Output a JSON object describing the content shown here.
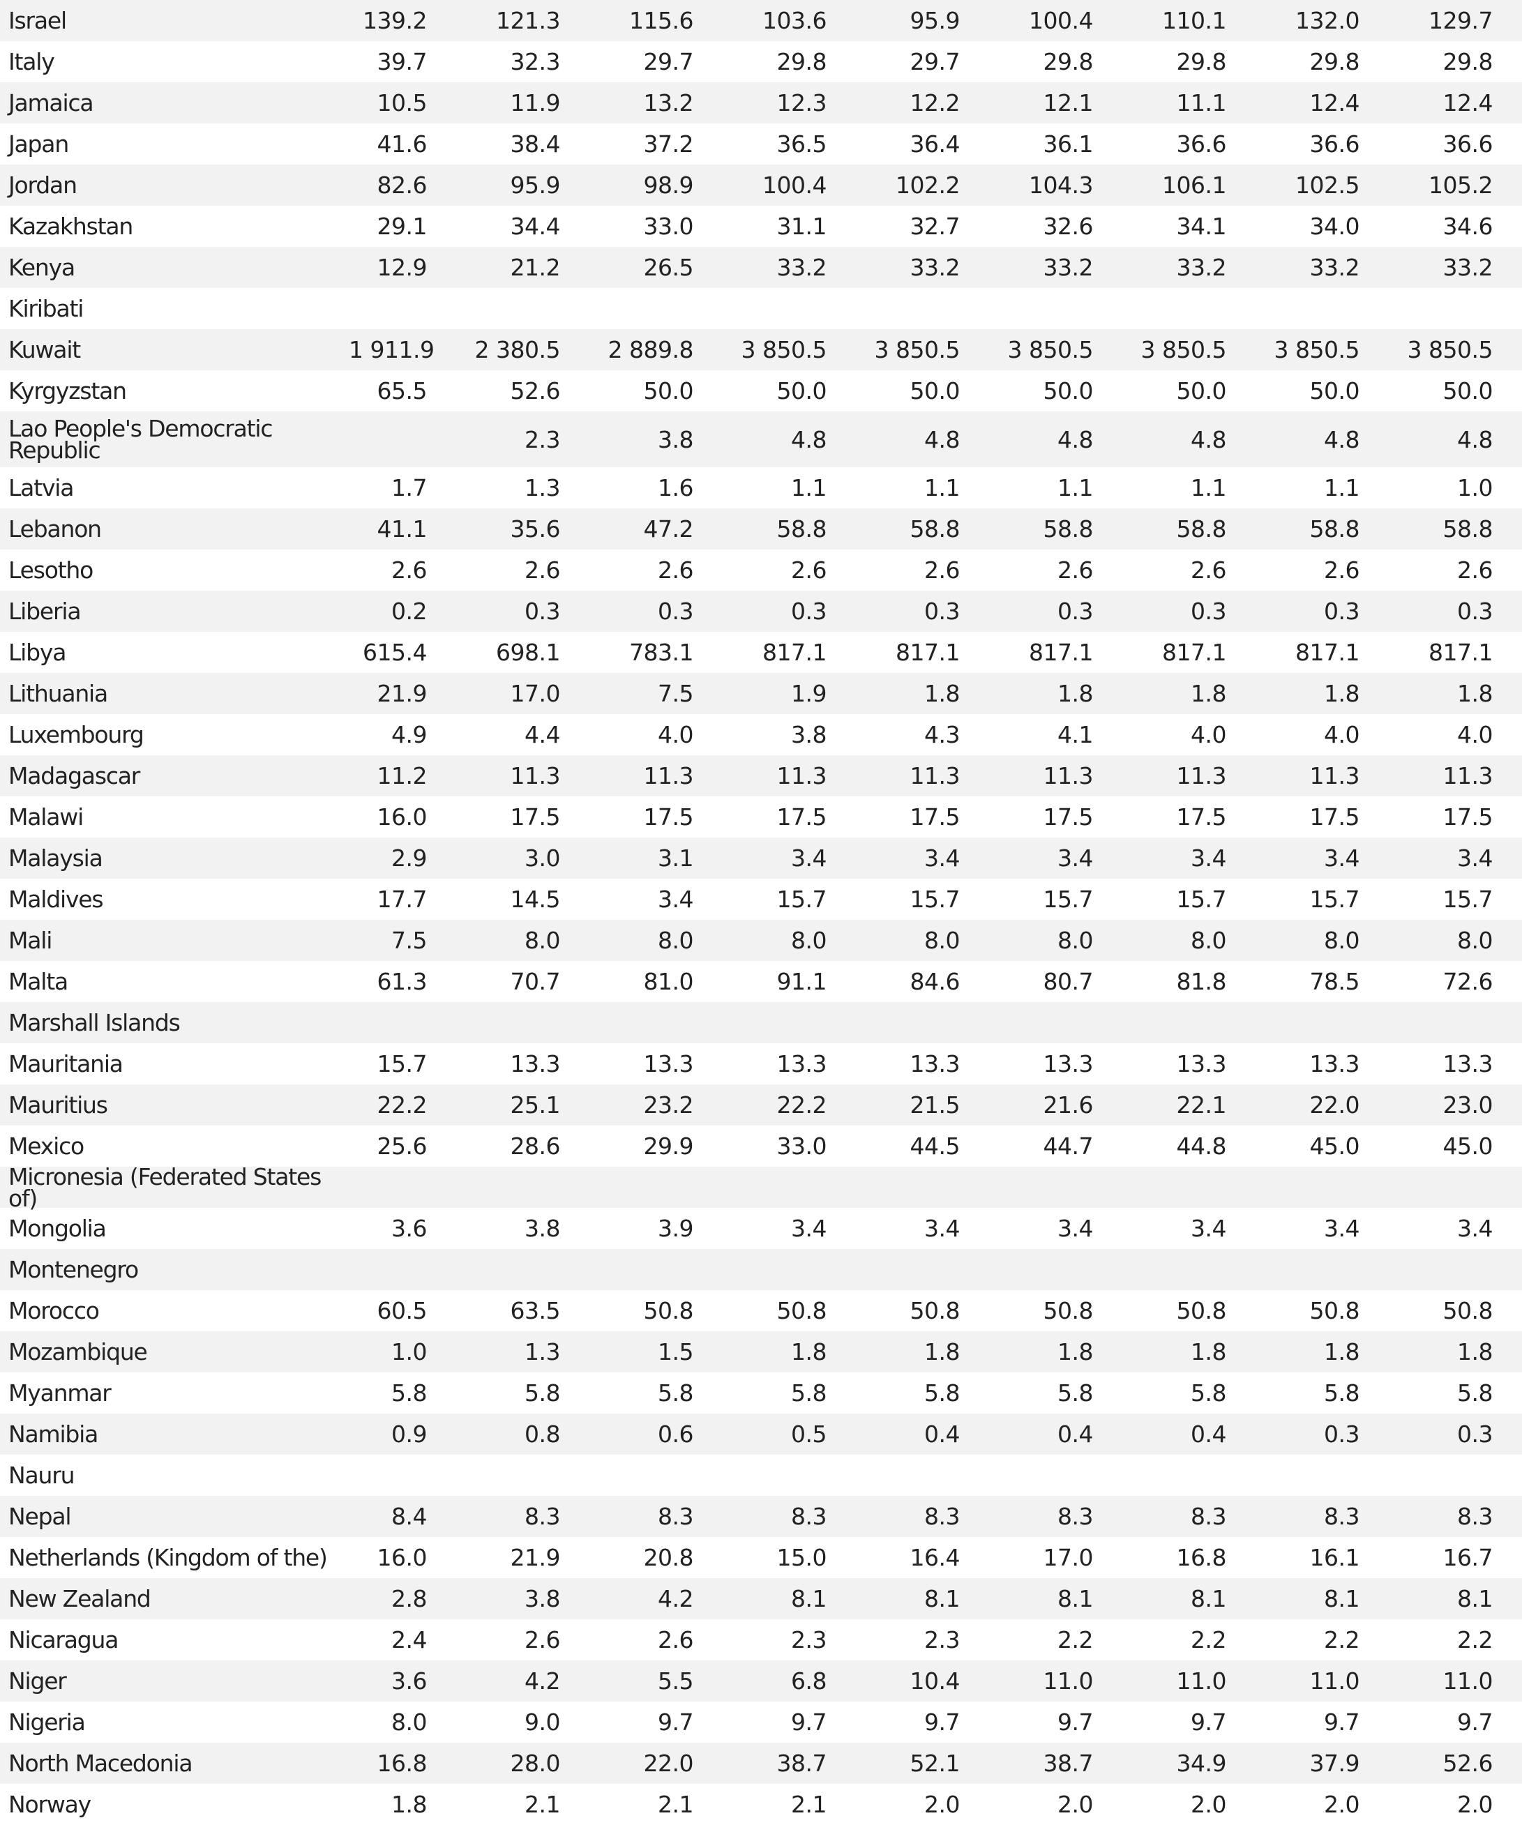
{
  "table": {
    "rows": [
      {
        "name": "Israel",
        "values": [
          "139.2",
          "121.3",
          "115.6",
          "103.6",
          "95.9",
          "100.4",
          "110.1",
          "132.0",
          "129.7"
        ]
      },
      {
        "name": "Italy",
        "values": [
          "39.7",
          "32.3",
          "29.7",
          "29.8",
          "29.7",
          "29.8",
          "29.8",
          "29.8",
          "29.8"
        ]
      },
      {
        "name": "Jamaica",
        "values": [
          "10.5",
          "11.9",
          "13.2",
          "12.3",
          "12.2",
          "12.1",
          "11.1",
          "12.4",
          "12.4"
        ]
      },
      {
        "name": "Japan",
        "values": [
          "41.6",
          "38.4",
          "37.2",
          "36.5",
          "36.4",
          "36.1",
          "36.6",
          "36.6",
          "36.6"
        ]
      },
      {
        "name": "Jordan",
        "values": [
          "82.6",
          "95.9",
          "98.9",
          "100.4",
          "102.2",
          "104.3",
          "106.1",
          "102.5",
          "105.2"
        ]
      },
      {
        "name": "Kazakhstan",
        "values": [
          "29.1",
          "34.4",
          "33.0",
          "31.1",
          "32.7",
          "32.6",
          "34.1",
          "34.0",
          "34.6"
        ]
      },
      {
        "name": "Kenya",
        "values": [
          "12.9",
          "21.2",
          "26.5",
          "33.2",
          "33.2",
          "33.2",
          "33.2",
          "33.2",
          "33.2"
        ]
      },
      {
        "name": "Kiribati",
        "values": [
          "",
          "",
          "",
          "",
          "",
          "",
          "",
          "",
          ""
        ]
      },
      {
        "name": "Kuwait",
        "values": [
          "1 911.9",
          "2 380.5",
          "2 889.8",
          "3 850.5",
          "3 850.5",
          "3 850.5",
          "3 850.5",
          "3 850.5",
          "3 850.5"
        ]
      },
      {
        "name": "Kyrgyzstan",
        "values": [
          "65.5",
          "52.6",
          "50.0",
          "50.0",
          "50.0",
          "50.0",
          "50.0",
          "50.0",
          "50.0"
        ]
      },
      {
        "name": "Lao People's Democratic Republic",
        "values": [
          "",
          "2.3",
          "3.8",
          "4.8",
          "4.8",
          "4.8",
          "4.8",
          "4.8",
          "4.8"
        ],
        "tall": true
      },
      {
        "name": "Latvia",
        "values": [
          "1.7",
          "1.3",
          "1.6",
          "1.1",
          "1.1",
          "1.1",
          "1.1",
          "1.1",
          "1.0"
        ]
      },
      {
        "name": "Lebanon",
        "values": [
          "41.1",
          "35.6",
          "47.2",
          "58.8",
          "58.8",
          "58.8",
          "58.8",
          "58.8",
          "58.8"
        ]
      },
      {
        "name": "Lesotho",
        "values": [
          "2.6",
          "2.6",
          "2.6",
          "2.6",
          "2.6",
          "2.6",
          "2.6",
          "2.6",
          "2.6"
        ]
      },
      {
        "name": "Liberia",
        "values": [
          "0.2",
          "0.3",
          "0.3",
          "0.3",
          "0.3",
          "0.3",
          "0.3",
          "0.3",
          "0.3"
        ]
      },
      {
        "name": "Libya",
        "values": [
          "615.4",
          "698.1",
          "783.1",
          "817.1",
          "817.1",
          "817.1",
          "817.1",
          "817.1",
          "817.1"
        ]
      },
      {
        "name": "Lithuania",
        "values": [
          "21.9",
          "17.0",
          "7.5",
          "1.9",
          "1.8",
          "1.8",
          "1.8",
          "1.8",
          "1.8"
        ]
      },
      {
        "name": "Luxembourg",
        "values": [
          "4.9",
          "4.4",
          "4.0",
          "3.8",
          "4.3",
          "4.1",
          "4.0",
          "4.0",
          "4.0"
        ]
      },
      {
        "name": "Madagascar",
        "values": [
          "11.2",
          "11.3",
          "11.3",
          "11.3",
          "11.3",
          "11.3",
          "11.3",
          "11.3",
          "11.3"
        ]
      },
      {
        "name": "Malawi",
        "values": [
          "16.0",
          "17.5",
          "17.5",
          "17.5",
          "17.5",
          "17.5",
          "17.5",
          "17.5",
          "17.5"
        ]
      },
      {
        "name": "Malaysia",
        "values": [
          "2.9",
          "3.0",
          "3.1",
          "3.4",
          "3.4",
          "3.4",
          "3.4",
          "3.4",
          "3.4"
        ]
      },
      {
        "name": "Maldives",
        "values": [
          "17.7",
          "14.5",
          "3.4",
          "15.7",
          "15.7",
          "15.7",
          "15.7",
          "15.7",
          "15.7"
        ]
      },
      {
        "name": "Mali",
        "values": [
          "7.5",
          "8.0",
          "8.0",
          "8.0",
          "8.0",
          "8.0",
          "8.0",
          "8.0",
          "8.0"
        ]
      },
      {
        "name": "Malta",
        "values": [
          "61.3",
          "70.7",
          "81.0",
          "91.1",
          "84.6",
          "80.7",
          "81.8",
          "78.5",
          "72.6"
        ]
      },
      {
        "name": "Marshall Islands",
        "values": [
          "",
          "",
          "",
          "",
          "",
          "",
          "",
          "",
          ""
        ]
      },
      {
        "name": "Mauritania",
        "values": [
          "15.7",
          "13.3",
          "13.3",
          "13.3",
          "13.3",
          "13.3",
          "13.3",
          "13.3",
          "13.3"
        ]
      },
      {
        "name": "Mauritius",
        "values": [
          "22.2",
          "25.1",
          "23.2",
          "22.2",
          "21.5",
          "21.6",
          "22.1",
          "22.0",
          "23.0"
        ]
      },
      {
        "name": "Mexico",
        "values": [
          "25.6",
          "28.6",
          "29.9",
          "33.0",
          "44.5",
          "44.7",
          "44.8",
          "45.0",
          "45.0"
        ]
      },
      {
        "name": "Micronesia (Federated States of)",
        "values": [
          "",
          "",
          "",
          "",
          "",
          "",
          "",
          "",
          ""
        ]
      },
      {
        "name": "Mongolia",
        "values": [
          "3.6",
          "3.8",
          "3.9",
          "3.4",
          "3.4",
          "3.4",
          "3.4",
          "3.4",
          "3.4"
        ]
      },
      {
        "name": "Montenegro",
        "values": [
          "",
          "",
          "",
          "",
          "",
          "",
          "",
          "",
          ""
        ]
      },
      {
        "name": "Morocco",
        "values": [
          "60.5",
          "63.5",
          "50.8",
          "50.8",
          "50.8",
          "50.8",
          "50.8",
          "50.8",
          "50.8"
        ]
      },
      {
        "name": "Mozambique",
        "values": [
          "1.0",
          "1.3",
          "1.5",
          "1.8",
          "1.8",
          "1.8",
          "1.8",
          "1.8",
          "1.8"
        ]
      },
      {
        "name": "Myanmar",
        "values": [
          "5.8",
          "5.8",
          "5.8",
          "5.8",
          "5.8",
          "5.8",
          "5.8",
          "5.8",
          "5.8"
        ]
      },
      {
        "name": "Namibia",
        "values": [
          "0.9",
          "0.8",
          "0.6",
          "0.5",
          "0.4",
          "0.4",
          "0.4",
          "0.3",
          "0.3"
        ]
      },
      {
        "name": "Nauru",
        "values": [
          "",
          "",
          "",
          "",
          "",
          "",
          "",
          "",
          ""
        ]
      },
      {
        "name": "Nepal",
        "values": [
          "8.4",
          "8.3",
          "8.3",
          "8.3",
          "8.3",
          "8.3",
          "8.3",
          "8.3",
          "8.3"
        ]
      },
      {
        "name": "Netherlands (Kingdom of the)",
        "values": [
          "16.0",
          "21.9",
          "20.8",
          "15.0",
          "16.4",
          "17.0",
          "16.8",
          "16.1",
          "16.7"
        ]
      },
      {
        "name": "New Zealand",
        "values": [
          "2.8",
          "3.8",
          "4.2",
          "8.1",
          "8.1",
          "8.1",
          "8.1",
          "8.1",
          "8.1"
        ]
      },
      {
        "name": "Nicaragua",
        "values": [
          "2.4",
          "2.6",
          "2.6",
          "2.3",
          "2.3",
          "2.2",
          "2.2",
          "2.2",
          "2.2"
        ]
      },
      {
        "name": "Niger",
        "values": [
          "3.6",
          "4.2",
          "5.5",
          "6.8",
          "10.4",
          "11.0",
          "11.0",
          "11.0",
          "11.0"
        ]
      },
      {
        "name": "Nigeria",
        "values": [
          "8.0",
          "9.0",
          "9.7",
          "9.7",
          "9.7",
          "9.7",
          "9.7",
          "9.7",
          "9.7"
        ]
      },
      {
        "name": "North Macedonia",
        "values": [
          "16.8",
          "28.0",
          "22.0",
          "38.7",
          "52.1",
          "38.7",
          "34.9",
          "37.9",
          "52.6"
        ]
      },
      {
        "name": "Norway",
        "values": [
          "1.8",
          "2.1",
          "2.1",
          "2.1",
          "2.0",
          "2.0",
          "2.0",
          "2.0",
          "2.0"
        ]
      }
    ]
  }
}
